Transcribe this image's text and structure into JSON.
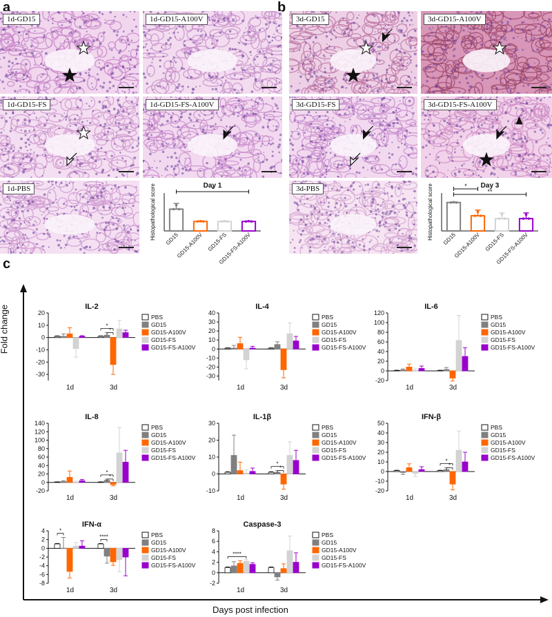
{
  "panels": {
    "a": "a",
    "b": "b",
    "c": "c"
  },
  "micrographs": [
    {
      "id": "m1",
      "label": "1d-GD15",
      "tint": "#c886c8",
      "base": "#f1d6ee",
      "marks": [
        "white-star",
        "black-star"
      ]
    },
    {
      "id": "m2",
      "label": "1d-GD15-A100V",
      "tint": "#c892cc",
      "base": "#f3dcef",
      "marks": []
    },
    {
      "id": "m3",
      "label": "1d-GD15-FS",
      "tint": "#cf98cf",
      "base": "#f4def1",
      "marks": [
        "white-star",
        "hollow-arrow"
      ]
    },
    {
      "id": "m4",
      "label": "1d-GD15-FS-A100V",
      "tint": "#c98dce",
      "base": "#f2d9ef",
      "marks": [
        "black-arrow"
      ]
    },
    {
      "id": "m5",
      "label": "1d-PBS",
      "tint": "#d09bd1",
      "base": "#f4e0f2",
      "marks": []
    },
    {
      "id": "m6",
      "label": "3d-GD15",
      "tint": "#c07aa8",
      "base": "#eed0e6",
      "marks": [
        "white-star",
        "black-star",
        "black-arrow"
      ]
    },
    {
      "id": "m7",
      "label": "3d-GD15-A100V",
      "tint": "#a04a6a",
      "base": "#d896b8",
      "marks": [
        "white-star"
      ]
    },
    {
      "id": "m8",
      "label": "3d-GD15-FS",
      "tint": "#c98ece",
      "base": "#f2d9ef",
      "marks": [
        "black-arrow",
        "hollow-arrow"
      ]
    },
    {
      "id": "m9",
      "label": "3d-GD15-FS-A100V",
      "tint": "#cf8fc4",
      "base": "#f1d2ea",
      "marks": [
        "black-arrow",
        "black-star",
        "triangle"
      ]
    },
    {
      "id": "m10",
      "label": "3d-PBS",
      "tint": "#d7a9d2",
      "base": "#f6e4f2",
      "marks": []
    }
  ],
  "colors": {
    "PBS": "#ffffff",
    "GD15": "#808080",
    "GD15-A100V": "#ff6600",
    "GD15-FS": "#d3d3d3",
    "GD15-FS-A100V": "#9900cc"
  },
  "histo_ylabel": "Histopathological score",
  "legend_groups": [
    "PBS",
    "GD15",
    "GD15-A100V",
    "GD15-FS",
    "GD15-FS-A100V"
  ],
  "fold_change_label": "Fold change",
  "days_label": "Days post infection",
  "chart_data": [
    {
      "id": "day1",
      "type": "bar",
      "title": "Day 1",
      "ylabel": "Histopathological score",
      "categories": [
        "GD15",
        "GD15-A100V",
        "GD15-FS",
        "GD15-FS-A100V"
      ],
      "values": [
        2.3,
        1.0,
        1.0,
        1.0
      ],
      "errors": [
        0.6,
        0.05,
        0.05,
        0.05
      ],
      "ylim": [
        0,
        4
      ],
      "sig": [
        {
          "from": 0,
          "to": 3,
          "label": "*"
        }
      ]
    },
    {
      "id": "day3",
      "type": "bar",
      "title": "Day 3",
      "ylabel": "Histopathological score",
      "categories": [
        "GD15",
        "GD15-A100V",
        "GD15-FS",
        "GD15-FS-A100V"
      ],
      "values": [
        3.0,
        1.6,
        1.3,
        1.3
      ],
      "errors": [
        0.05,
        0.6,
        0.6,
        0.6
      ],
      "ylim": [
        0,
        4
      ],
      "sig": [
        {
          "from": 0,
          "to": 1,
          "label": "*"
        },
        {
          "from": 0,
          "to": 3,
          "label": "**"
        }
      ]
    },
    {
      "id": "il2",
      "type": "bar",
      "title": "IL-2",
      "categories": [
        "1d",
        "3d"
      ],
      "ylim": [
        -35,
        20
      ],
      "yticks": [
        20,
        10,
        0,
        -10,
        -20,
        -30
      ],
      "series": [
        {
          "name": "PBS",
          "values": [
            1,
            1
          ],
          "errors": [
            0.3,
            0.3
          ]
        },
        {
          "name": "GD15",
          "values": [
            1,
            2
          ],
          "errors": [
            2,
            2
          ]
        },
        {
          "name": "GD15-A100V",
          "values": [
            3,
            -22
          ],
          "errors": [
            5,
            8
          ]
        },
        {
          "name": "GD15-FS",
          "values": [
            -9,
            7
          ],
          "errors": [
            7,
            7
          ]
        },
        {
          "name": "GD15-FS-A100V",
          "values": [
            1,
            4
          ],
          "errors": [
            0.5,
            2
          ]
        }
      ],
      "sig": [
        {
          "day": 1,
          "from": 0,
          "to": 2,
          "label": "*",
          "level": 0
        },
        {
          "day": 1,
          "from": 1,
          "to": 2,
          "label": "*",
          "level": 1
        }
      ]
    },
    {
      "id": "il4",
      "type": "bar",
      "title": "IL-4",
      "categories": [
        "1d",
        "3d"
      ],
      "ylim": [
        -35,
        40
      ],
      "yticks": [
        40,
        30,
        20,
        10,
        0,
        -10,
        -20,
        -30
      ],
      "series": [
        {
          "name": "PBS",
          "values": [
            1,
            1
          ],
          "errors": [
            0.3,
            0.3
          ]
        },
        {
          "name": "GD15",
          "values": [
            1,
            5
          ],
          "errors": [
            3,
            3
          ]
        },
        {
          "name": "GD15-A100V",
          "values": [
            6,
            -23
          ],
          "errors": [
            7,
            9
          ]
        },
        {
          "name": "GD15-FS",
          "values": [
            -12,
            17
          ],
          "errors": [
            10,
            12
          ]
        },
        {
          "name": "GD15-FS-A100V",
          "values": [
            1,
            9
          ],
          "errors": [
            2,
            5
          ]
        }
      ],
      "sig": []
    },
    {
      "id": "il6",
      "type": "bar",
      "title": "IL-6",
      "categories": [
        "1d",
        "3d"
      ],
      "ylim": [
        -20,
        120
      ],
      "yticks": [
        120,
        100,
        80,
        60,
        40,
        20,
        0,
        -20
      ],
      "series": [
        {
          "name": "PBS",
          "values": [
            1,
            1
          ],
          "errors": [
            0.3,
            0.3
          ]
        },
        {
          "name": "GD15",
          "values": [
            2,
            3
          ],
          "errors": [
            2,
            4
          ]
        },
        {
          "name": "GD15-A100V",
          "values": [
            8,
            -15
          ],
          "errors": [
            6,
            6
          ]
        },
        {
          "name": "GD15-FS",
          "values": [
            1,
            63
          ],
          "errors": [
            3,
            52
          ]
        },
        {
          "name": "GD15-FS-A100V",
          "values": [
            5,
            30
          ],
          "errors": [
            5,
            18
          ]
        }
      ],
      "sig": []
    },
    {
      "id": "il8",
      "type": "bar",
      "title": "IL-8",
      "categories": [
        "1d",
        "3d"
      ],
      "ylim": [
        -20,
        140
      ],
      "yticks": [
        140,
        120,
        100,
        80,
        60,
        40,
        20,
        0,
        -20
      ],
      "series": [
        {
          "name": "PBS",
          "values": [
            1,
            1
          ],
          "errors": [
            0.3,
            0.3
          ]
        },
        {
          "name": "GD15",
          "values": [
            2,
            5
          ],
          "errors": [
            2,
            3
          ]
        },
        {
          "name": "GD15-A100V",
          "values": [
            12,
            -5
          ],
          "errors": [
            15,
            3
          ]
        },
        {
          "name": "GD15-FS",
          "values": [
            1,
            70
          ],
          "errors": [
            2,
            60
          ]
        },
        {
          "name": "GD15-FS-A100V",
          "values": [
            4,
            48
          ],
          "errors": [
            3,
            28
          ]
        }
      ],
      "sig": [
        {
          "day": 1,
          "from": 0,
          "to": 2,
          "label": "*",
          "level": 0
        },
        {
          "day": 1,
          "from": 1,
          "to": 2,
          "label": "*",
          "level": 1
        }
      ]
    },
    {
      "id": "il1b",
      "type": "bar",
      "title": "IL-1β",
      "categories": [
        "1d",
        "3d"
      ],
      "ylim": [
        -10,
        30
      ],
      "yticks": [
        30,
        20,
        10,
        0,
        -10
      ],
      "series": [
        {
          "name": "PBS",
          "values": [
            1,
            1
          ],
          "errors": [
            0.3,
            0.3
          ]
        },
        {
          "name": "GD15",
          "values": [
            11,
            1
          ],
          "errors": [
            12,
            1
          ]
        },
        {
          "name": "GD15-A100V",
          "values": [
            2,
            -6
          ],
          "errors": [
            5,
            3
          ]
        },
        {
          "name": "GD15-FS",
          "values": [
            0.5,
            11
          ],
          "errors": [
            2,
            8
          ]
        },
        {
          "name": "GD15-FS-A100V",
          "values": [
            1.5,
            8
          ],
          "errors": [
            2,
            6
          ]
        }
      ],
      "sig": [
        {
          "day": 1,
          "from": 0,
          "to": 2,
          "label": "*",
          "level": 0
        },
        {
          "day": 1,
          "from": 1,
          "to": 2,
          "label": "*",
          "level": 1
        }
      ]
    },
    {
      "id": "ifnb",
      "type": "bar",
      "title": "IFN-β",
      "categories": [
        "1d",
        "3d"
      ],
      "ylim": [
        -20,
        50
      ],
      "yticks": [
        50,
        40,
        30,
        20,
        10,
        0,
        -10,
        -20
      ],
      "series": [
        {
          "name": "PBS",
          "values": [
            1,
            1
          ],
          "errors": [
            0.3,
            0.3
          ]
        },
        {
          "name": "GD15",
          "values": [
            -1,
            2
          ],
          "errors": [
            2,
            2
          ]
        },
        {
          "name": "GD15-A100V",
          "values": [
            4,
            -13
          ],
          "errors": [
            4,
            6
          ]
        },
        {
          "name": "GD15-FS",
          "values": [
            -2,
            22
          ],
          "errors": [
            3,
            20
          ]
        },
        {
          "name": "GD15-FS-A100V",
          "values": [
            2,
            10
          ],
          "errors": [
            3,
            10
          ]
        }
      ],
      "sig": [
        {
          "day": 1,
          "from": 0,
          "to": 2,
          "label": "*",
          "level": 0
        },
        {
          "day": 1,
          "from": 1,
          "to": 2,
          "label": "*",
          "level": 1
        }
      ]
    },
    {
      "id": "ifna",
      "type": "bar",
      "title": "IFN-α",
      "categories": [
        "1d",
        "3d"
      ],
      "ylim": [
        -8,
        4
      ],
      "yticks": [
        4,
        2,
        0,
        -2,
        -4,
        -6,
        -8
      ],
      "series": [
        {
          "name": "PBS",
          "values": [
            1,
            1
          ],
          "errors": [
            0.1,
            0.1
          ]
        },
        {
          "name": "GD15",
          "values": [
            0,
            -1.8
          ],
          "errors": [
            2.5,
            1.6
          ]
        },
        {
          "name": "GD15-A100V",
          "values": [
            -5.3,
            -3.1
          ],
          "errors": [
            1.5,
            0.8
          ]
        },
        {
          "name": "GD15-FS",
          "values": [
            0.5,
            -2.6
          ],
          "errors": [
            0.8,
            2.8
          ]
        },
        {
          "name": "GD15-FS-A100V",
          "values": [
            0.5,
            -2
          ],
          "errors": [
            1.2,
            4.3
          ]
        }
      ],
      "sig": [
        {
          "day": 0,
          "from": 0,
          "to": 1,
          "label": "*",
          "level": 0
        },
        {
          "day": 1,
          "from": 0,
          "to": 1,
          "label": "****",
          "level": 0
        }
      ]
    },
    {
      "id": "casp3",
      "type": "bar",
      "title": "Caspase-3",
      "categories": [
        "1d",
        "3d"
      ],
      "ylim": [
        -2,
        8
      ],
      "yticks": [
        8,
        6,
        4,
        2,
        0,
        -2
      ],
      "series": [
        {
          "name": "PBS",
          "values": [
            1,
            1
          ],
          "errors": [
            0.1,
            0.1
          ]
        },
        {
          "name": "GD15",
          "values": [
            1.3,
            -0.8
          ],
          "errors": [
            0.8,
            0.6
          ]
        },
        {
          "name": "GD15-A100V",
          "values": [
            1.8,
            0.8
          ],
          "errors": [
            0.5,
            0.9
          ]
        },
        {
          "name": "GD15-FS",
          "values": [
            2.2,
            4.2
          ],
          "errors": [
            0.3,
            2.8
          ]
        },
        {
          "name": "GD15-FS-A100V",
          "values": [
            1.6,
            2
          ],
          "errors": [
            0.3,
            1.8
          ]
        }
      ],
      "sig": [
        {
          "day": 0,
          "from": 0,
          "to": 3,
          "label": "****",
          "level": 0
        }
      ]
    }
  ]
}
